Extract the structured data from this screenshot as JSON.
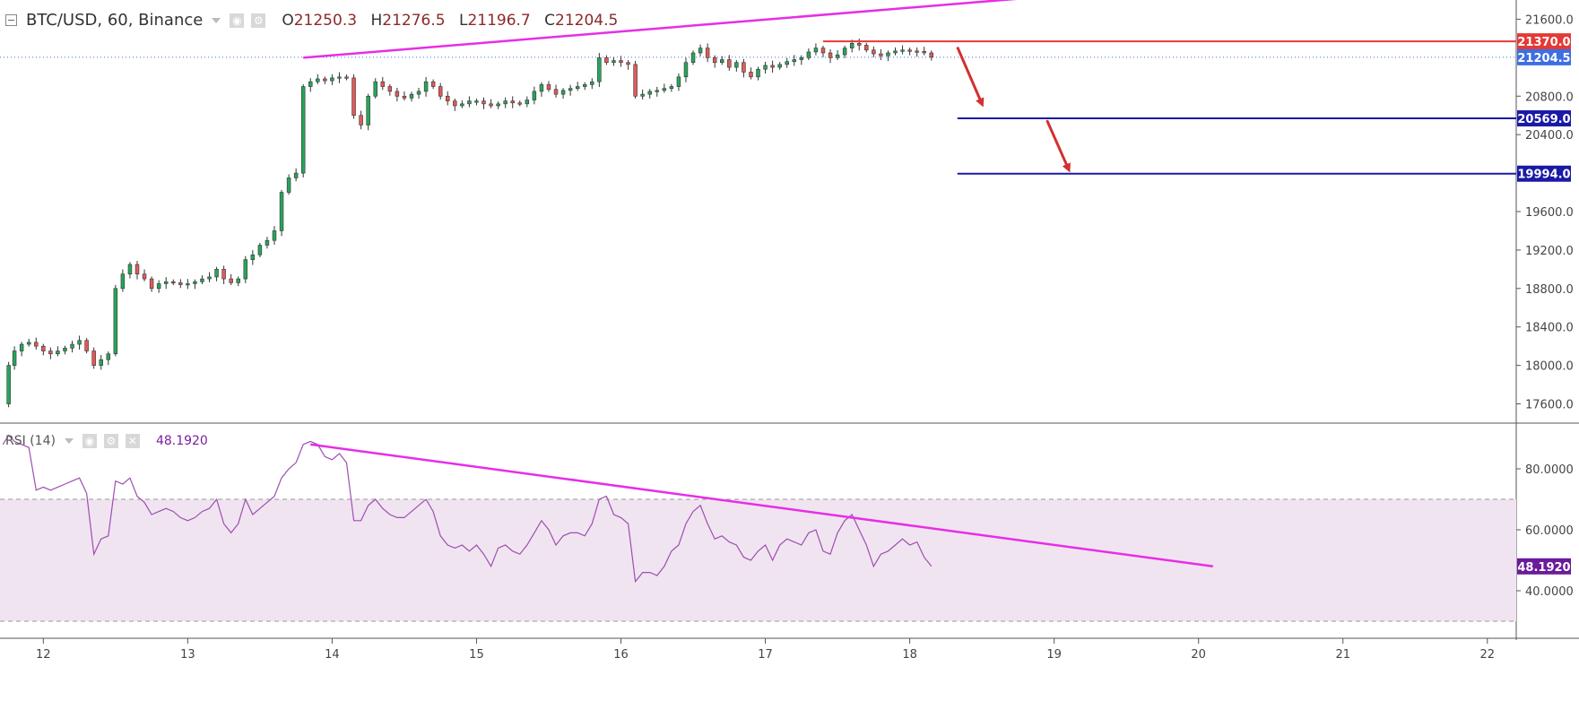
{
  "header": {
    "symbol": "BTC/USD, 60, Binance",
    "open_label": "O",
    "open": "21250.3",
    "high_label": "H",
    "high": "21276.5",
    "low_label": "L",
    "low": "21196.7",
    "close_label": "C",
    "close": "21204.5",
    "visibility_icon": "eye-icon",
    "settings_icon": "gear-icon"
  },
  "rsi_header": {
    "label": "RSI (14)",
    "value": "48.1920",
    "icons": [
      "eye-icon",
      "gear-icon",
      "close-icon"
    ]
  },
  "colors": {
    "up": "#26a65b",
    "down": "#e05a5a",
    "trendline": "#e62ee6",
    "resistance": "#e53935",
    "target": "#1a1aa6",
    "arrow": "#d32f2f",
    "rsi_line": "#9c4fb0",
    "rsi_band": "#f1e4f1",
    "last_price_badge": "#3d6fe0",
    "rsi_badge": "#6a1b9a"
  },
  "chart_data": {
    "type": "candlestick",
    "x_labels": [
      "12",
      "13",
      "14",
      "15",
      "16",
      "17",
      "18",
      "19",
      "20",
      "21",
      "22"
    ],
    "y_ticks": [
      "21600.0",
      "20800.0",
      "20400.0",
      "19600.0",
      "19200.0",
      "18800.0",
      "18400.0",
      "18000.0",
      "17600.0"
    ],
    "y_tick_values": [
      21600,
      20800,
      20400,
      19600,
      19200,
      18800,
      18400,
      18000,
      17600
    ],
    "ylim": [
      17400,
      21800
    ],
    "xlim": [
      11.7,
      22.2
    ],
    "price_path": [
      [
        11.72,
        17600
      ],
      [
        11.76,
        18000
      ],
      [
        11.8,
        18150
      ],
      [
        11.85,
        18220
      ],
      [
        11.9,
        18240
      ],
      [
        11.95,
        18200
      ],
      [
        12.0,
        18150
      ],
      [
        12.05,
        18120
      ],
      [
        12.1,
        18150
      ],
      [
        12.15,
        18180
      ],
      [
        12.2,
        18220
      ],
      [
        12.25,
        18260
      ],
      [
        12.3,
        18150
      ],
      [
        12.35,
        18000
      ],
      [
        12.4,
        18060
      ],
      [
        12.45,
        18120
      ],
      [
        12.5,
        18800
      ],
      [
        12.55,
        18950
      ],
      [
        12.6,
        19050
      ],
      [
        12.65,
        18950
      ],
      [
        12.7,
        18900
      ],
      [
        12.75,
        18800
      ],
      [
        12.8,
        18850
      ],
      [
        12.85,
        18870
      ],
      [
        12.9,
        18860
      ],
      [
        12.95,
        18840
      ],
      [
        13.0,
        18850
      ],
      [
        13.05,
        18870
      ],
      [
        13.1,
        18900
      ],
      [
        13.15,
        18920
      ],
      [
        13.2,
        19000
      ],
      [
        13.25,
        18900
      ],
      [
        13.3,
        18860
      ],
      [
        13.35,
        18900
      ],
      [
        13.4,
        19100
      ],
      [
        13.45,
        19150
      ],
      [
        13.5,
        19250
      ],
      [
        13.55,
        19300
      ],
      [
        13.6,
        19400
      ],
      [
        13.65,
        19800
      ],
      [
        13.7,
        19950
      ],
      [
        13.75,
        20000
      ],
      [
        13.8,
        20900
      ],
      [
        13.85,
        20950
      ],
      [
        13.9,
        20980
      ],
      [
        13.95,
        20960
      ],
      [
        14.0,
        20990
      ],
      [
        14.05,
        21000
      ],
      [
        14.1,
        20990
      ],
      [
        14.15,
        20600
      ],
      [
        14.2,
        20500
      ],
      [
        14.25,
        20800
      ],
      [
        14.3,
        20950
      ],
      [
        14.35,
        20900
      ],
      [
        14.4,
        20850
      ],
      [
        14.45,
        20800
      ],
      [
        14.5,
        20780
      ],
      [
        14.55,
        20820
      ],
      [
        14.6,
        20850
      ],
      [
        14.65,
        20950
      ],
      [
        14.7,
        20900
      ],
      [
        14.75,
        20800
      ],
      [
        14.8,
        20750
      ],
      [
        14.85,
        20700
      ],
      [
        14.9,
        20720
      ],
      [
        14.95,
        20750
      ],
      [
        15.0,
        20750
      ],
      [
        15.05,
        20720
      ],
      [
        15.1,
        20700
      ],
      [
        15.15,
        20720
      ],
      [
        15.2,
        20750
      ],
      [
        15.25,
        20730
      ],
      [
        15.3,
        20720
      ],
      [
        15.35,
        20760
      ],
      [
        15.4,
        20850
      ],
      [
        15.45,
        20920
      ],
      [
        15.5,
        20870
      ],
      [
        15.55,
        20820
      ],
      [
        15.6,
        20860
      ],
      [
        15.65,
        20880
      ],
      [
        15.7,
        20900
      ],
      [
        15.75,
        20920
      ],
      [
        15.8,
        20950
      ],
      [
        15.85,
        21200
      ],
      [
        15.9,
        21150
      ],
      [
        15.95,
        21170
      ],
      [
        16.0,
        21150
      ],
      [
        16.05,
        21130
      ],
      [
        16.1,
        20800
      ],
      [
        16.15,
        20820
      ],
      [
        16.2,
        20850
      ],
      [
        16.25,
        20860
      ],
      [
        16.3,
        20880
      ],
      [
        16.35,
        20900
      ],
      [
        16.4,
        21000
      ],
      [
        16.45,
        21150
      ],
      [
        16.5,
        21250
      ],
      [
        16.55,
        21300
      ],
      [
        16.6,
        21200
      ],
      [
        16.65,
        21150
      ],
      [
        16.7,
        21180
      ],
      [
        16.75,
        21100
      ],
      [
        16.8,
        21150
      ],
      [
        16.85,
        21050
      ],
      [
        16.9,
        21000
      ],
      [
        16.95,
        21080
      ],
      [
        17.0,
        21120
      ],
      [
        17.05,
        21100
      ],
      [
        17.1,
        21130
      ],
      [
        17.15,
        21160
      ],
      [
        17.2,
        21180
      ],
      [
        17.25,
        21200
      ],
      [
        17.3,
        21260
      ],
      [
        17.35,
        21300
      ],
      [
        17.4,
        21250
      ],
      [
        17.45,
        21200
      ],
      [
        17.5,
        21230
      ],
      [
        17.55,
        21300
      ],
      [
        17.6,
        21350
      ],
      [
        17.65,
        21330
      ],
      [
        17.7,
        21280
      ],
      [
        17.75,
        21240
      ],
      [
        17.8,
        21220
      ],
      [
        17.85,
        21250
      ],
      [
        17.9,
        21270
      ],
      [
        17.95,
        21280
      ],
      [
        18.0,
        21270
      ],
      [
        18.05,
        21265
      ],
      [
        18.1,
        21250
      ],
      [
        18.15,
        21205
      ]
    ],
    "trendline_upper": [
      [
        13.8,
        21200
      ],
      [
        20.1,
        21980
      ]
    ],
    "resistance": {
      "price": 21370,
      "x_start": 17.4,
      "label": "21370.0"
    },
    "last_price": {
      "price": 21204.5,
      "label": "21204.5"
    },
    "targets": [
      {
        "price": 20569,
        "x_start": 18.33,
        "label": "20569.0"
      },
      {
        "price": 19994,
        "x_start": 18.33,
        "label": "19994.0"
      }
    ],
    "arrows": [
      {
        "from": [
          18.33,
          21310
        ],
        "to": [
          18.5,
          20720
        ]
      },
      {
        "from": [
          18.95,
          20550
        ],
        "to": [
          19.1,
          20040
        ]
      }
    ],
    "rsi": {
      "period": 14,
      "ylim": [
        25,
        95
      ],
      "y_ticks": [
        "80.0000",
        "60.0000",
        "40.0000"
      ],
      "y_tick_values": [
        80,
        60,
        40
      ],
      "band": [
        30,
        70
      ],
      "value_label": "48.1920",
      "path": [
        [
          11.72,
          88
        ],
        [
          11.76,
          91
        ],
        [
          11.8,
          89
        ],
        [
          11.85,
          88
        ],
        [
          11.9,
          87
        ],
        [
          11.95,
          73
        ],
        [
          12.0,
          74
        ],
        [
          12.05,
          73
        ],
        [
          12.1,
          74
        ],
        [
          12.15,
          75
        ],
        [
          12.2,
          76
        ],
        [
          12.25,
          77
        ],
        [
          12.3,
          72
        ],
        [
          12.35,
          52
        ],
        [
          12.4,
          57
        ],
        [
          12.45,
          58
        ],
        [
          12.5,
          76
        ],
        [
          12.55,
          75
        ],
        [
          12.6,
          77
        ],
        [
          12.65,
          71
        ],
        [
          12.7,
          69
        ],
        [
          12.75,
          65
        ],
        [
          12.8,
          66
        ],
        [
          12.85,
          67
        ],
        [
          12.9,
          66
        ],
        [
          12.95,
          64
        ],
        [
          13.0,
          63
        ],
        [
          13.05,
          64
        ],
        [
          13.1,
          66
        ],
        [
          13.15,
          67
        ],
        [
          13.2,
          70
        ],
        [
          13.25,
          62
        ],
        [
          13.3,
          59
        ],
        [
          13.35,
          62
        ],
        [
          13.4,
          70
        ],
        [
          13.45,
          65
        ],
        [
          13.5,
          67
        ],
        [
          13.55,
          69
        ],
        [
          13.6,
          71
        ],
        [
          13.65,
          77
        ],
        [
          13.7,
          80
        ],
        [
          13.75,
          82
        ],
        [
          13.8,
          88
        ],
        [
          13.85,
          89
        ],
        [
          13.9,
          88
        ],
        [
          13.95,
          84
        ],
        [
          14.0,
          83
        ],
        [
          14.05,
          85
        ],
        [
          14.1,
          82
        ],
        [
          14.15,
          63
        ],
        [
          14.2,
          63
        ],
        [
          14.25,
          68
        ],
        [
          14.3,
          70
        ],
        [
          14.35,
          67
        ],
        [
          14.4,
          65
        ],
        [
          14.45,
          64
        ],
        [
          14.5,
          64
        ],
        [
          14.55,
          66
        ],
        [
          14.6,
          68
        ],
        [
          14.65,
          70
        ],
        [
          14.7,
          66
        ],
        [
          14.75,
          58
        ],
        [
          14.8,
          55
        ],
        [
          14.85,
          54
        ],
        [
          14.9,
          55
        ],
        [
          14.95,
          53
        ],
        [
          15.0,
          55
        ],
        [
          15.05,
          52
        ],
        [
          15.1,
          48
        ],
        [
          15.15,
          54
        ],
        [
          15.2,
          55
        ],
        [
          15.25,
          53
        ],
        [
          15.3,
          52
        ],
        [
          15.35,
          55
        ],
        [
          15.4,
          59
        ],
        [
          15.45,
          63
        ],
        [
          15.5,
          60
        ],
        [
          15.55,
          55
        ],
        [
          15.6,
          58
        ],
        [
          15.65,
          59
        ],
        [
          15.7,
          59
        ],
        [
          15.75,
          58
        ],
        [
          15.8,
          62
        ],
        [
          15.85,
          70
        ],
        [
          15.9,
          71
        ],
        [
          15.95,
          65
        ],
        [
          16.0,
          64
        ],
        [
          16.05,
          62
        ],
        [
          16.1,
          43
        ],
        [
          16.15,
          46
        ],
        [
          16.2,
          46
        ],
        [
          16.25,
          45
        ],
        [
          16.3,
          48
        ],
        [
          16.35,
          53
        ],
        [
          16.4,
          55
        ],
        [
          16.45,
          62
        ],
        [
          16.5,
          66
        ],
        [
          16.55,
          68
        ],
        [
          16.6,
          62
        ],
        [
          16.65,
          57
        ],
        [
          16.7,
          58
        ],
        [
          16.75,
          56
        ],
        [
          16.8,
          55
        ],
        [
          16.85,
          51
        ],
        [
          16.9,
          50
        ],
        [
          16.95,
          53
        ],
        [
          17.0,
          55
        ],
        [
          17.05,
          50
        ],
        [
          17.1,
          55
        ],
        [
          17.15,
          57
        ],
        [
          17.2,
          56
        ],
        [
          17.25,
          55
        ],
        [
          17.3,
          59
        ],
        [
          17.35,
          60
        ],
        [
          17.4,
          53
        ],
        [
          17.45,
          52
        ],
        [
          17.5,
          59
        ],
        [
          17.55,
          63
        ],
        [
          17.6,
          65
        ],
        [
          17.65,
          60
        ],
        [
          17.7,
          55
        ],
        [
          17.75,
          48
        ],
        [
          17.8,
          52
        ],
        [
          17.85,
          53
        ],
        [
          17.9,
          55
        ],
        [
          17.95,
          57
        ],
        [
          18.0,
          55
        ],
        [
          18.05,
          56
        ],
        [
          18.1,
          51
        ],
        [
          18.15,
          48
        ]
      ],
      "trendline": [
        [
          13.85,
          88
        ],
        [
          20.1,
          48
        ]
      ]
    }
  }
}
